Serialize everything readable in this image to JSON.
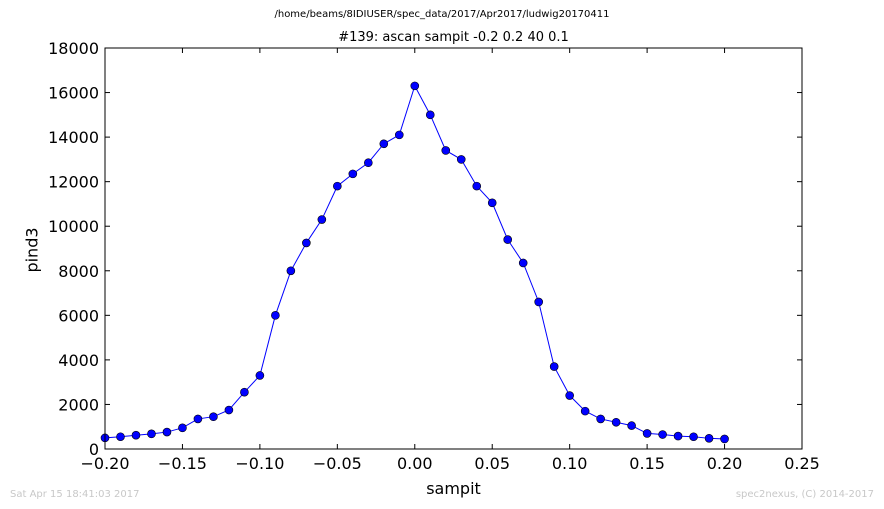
{
  "suptitle": "/home/beams/8IDIUSER/spec_data/2017/Apr2017/ludwig20170411",
  "footer_left": "Sat Apr 15 18:41:03 2017",
  "footer_right": "spec2nexus, (C) 2014-2017",
  "chart_data": {
    "type": "line",
    "title": "#139: ascan  sampit -0.2 0.2  40 0.1",
    "xlabel": "sampit",
    "ylabel": "pind3",
    "xlim": [
      -0.2,
      0.25
    ],
    "ylim": [
      0,
      18000
    ],
    "xticks": [
      -0.2,
      -0.15,
      -0.1,
      -0.05,
      0.0,
      0.05,
      0.1,
      0.15,
      0.2,
      0.25
    ],
    "xtick_labels": [
      "−0.20",
      "−0.15",
      "−0.10",
      "−0.05",
      "0.00",
      "0.05",
      "0.10",
      "0.15",
      "0.20",
      "0.25"
    ],
    "yticks": [
      0,
      2000,
      4000,
      6000,
      8000,
      10000,
      12000,
      14000,
      16000,
      18000
    ],
    "ytick_labels": [
      "0",
      "2000",
      "4000",
      "6000",
      "8000",
      "10000",
      "12000",
      "14000",
      "16000",
      "18000"
    ],
    "grid": false,
    "series_color": "#0000ff",
    "series": [
      {
        "x": [
          -0.2,
          -0.19,
          -0.18,
          -0.17,
          -0.16,
          -0.15,
          -0.14,
          -0.13,
          -0.12,
          -0.11,
          -0.1,
          -0.09,
          -0.08,
          -0.07,
          -0.06,
          -0.05,
          -0.04,
          -0.03,
          -0.02,
          -0.01,
          0.0,
          0.01,
          0.02,
          0.03,
          0.04,
          0.05,
          0.06,
          0.07,
          0.08,
          0.09,
          0.1,
          0.11,
          0.12,
          0.13,
          0.14,
          0.15,
          0.16,
          0.17,
          0.18,
          0.19,
          0.2
        ],
        "y": [
          500,
          550,
          620,
          680,
          760,
          950,
          1350,
          1450,
          1750,
          2550,
          3300,
          6000,
          8000,
          9250,
          10300,
          11800,
          12350,
          12850,
          13700,
          14100,
          16300,
          15000,
          13400,
          13000,
          11800,
          11050,
          9400,
          8350,
          6600,
          3700,
          2400,
          1700,
          1350,
          1200,
          1050,
          700,
          650,
          580,
          550,
          480,
          450
        ]
      }
    ]
  }
}
